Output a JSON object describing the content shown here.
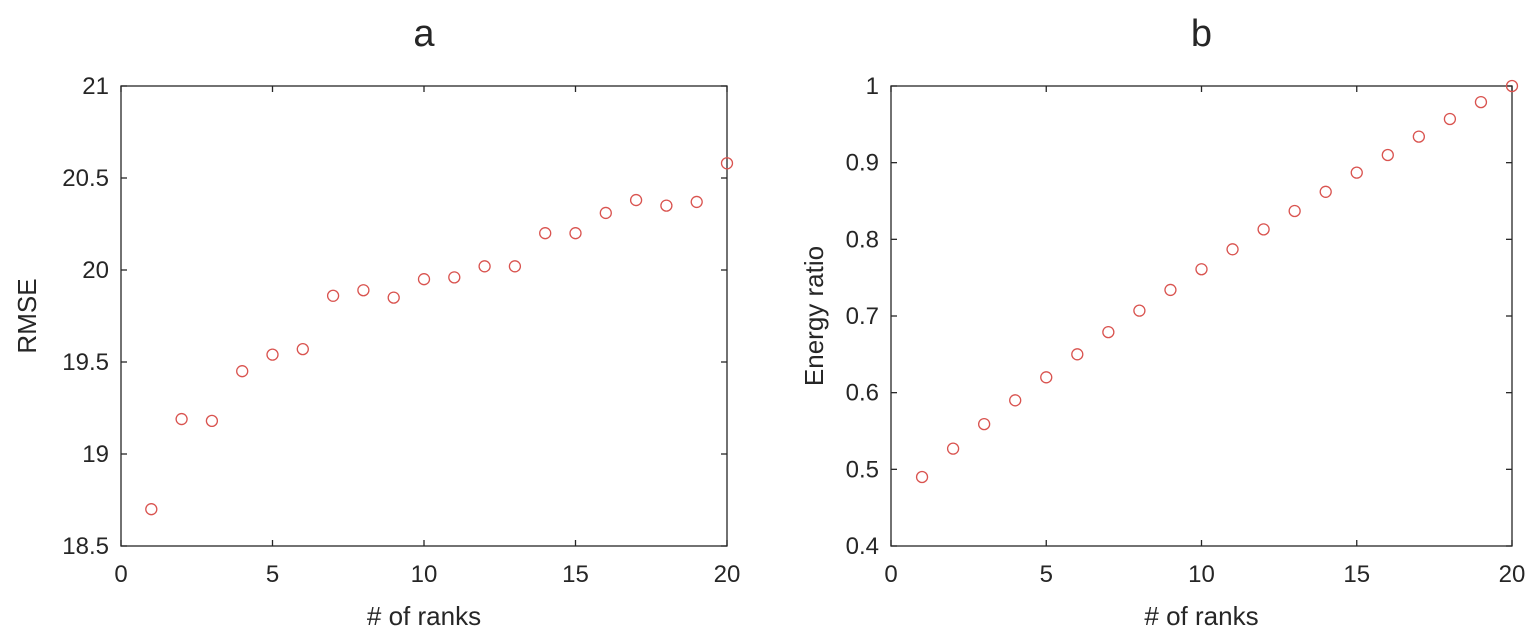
{
  "chart_data": [
    {
      "type": "scatter",
      "title": "a",
      "xlabel": "# of ranks",
      "ylabel": "RMSE",
      "xlim": [
        0,
        20
      ],
      "ylim": [
        18.5,
        21
      ],
      "xticks": [
        0,
        5,
        10,
        15,
        20
      ],
      "yticks": [
        18.5,
        19,
        19.5,
        20,
        20.5,
        21
      ],
      "xtick_labels": [
        "0",
        "5",
        "10",
        "15",
        "20"
      ],
      "ytick_labels": [
        "18.5",
        "19",
        "19.5",
        "20",
        "20.5",
        "21"
      ],
      "grid": false,
      "marker_color": "#d9534f",
      "marker": "circle-open",
      "x": [
        1,
        2,
        3,
        4,
        5,
        6,
        7,
        8,
        9,
        10,
        11,
        12,
        13,
        14,
        15,
        16,
        17,
        18,
        19,
        20
      ],
      "y": [
        18.7,
        19.19,
        19.18,
        19.45,
        19.54,
        19.57,
        19.86,
        19.89,
        19.85,
        19.95,
        19.96,
        20.02,
        20.02,
        20.2,
        20.2,
        20.31,
        20.38,
        20.35,
        20.37,
        20.58
      ]
    },
    {
      "type": "scatter",
      "title": "b",
      "xlabel": "# of ranks",
      "ylabel": "Energy ratio",
      "xlim": [
        0,
        20
      ],
      "ylim": [
        0.4,
        1
      ],
      "xticks": [
        0,
        5,
        10,
        15,
        20
      ],
      "yticks": [
        0.4,
        0.5,
        0.6,
        0.7,
        0.8,
        0.9,
        1
      ],
      "xtick_labels": [
        "0",
        "5",
        "10",
        "15",
        "20"
      ],
      "ytick_labels": [
        "0.4",
        "0.5",
        "0.6",
        "0.7",
        "0.8",
        "0.9",
        "1"
      ],
      "grid": false,
      "marker_color": "#d9534f",
      "marker": "circle-open",
      "x": [
        1,
        2,
        3,
        4,
        5,
        6,
        7,
        8,
        9,
        10,
        11,
        12,
        13,
        14,
        15,
        16,
        17,
        18,
        19,
        20
      ],
      "y": [
        0.49,
        0.527,
        0.559,
        0.59,
        0.62,
        0.65,
        0.679,
        0.707,
        0.734,
        0.761,
        0.787,
        0.813,
        0.837,
        0.862,
        0.887,
        0.91,
        0.934,
        0.957,
        0.979,
        1.0
      ]
    }
  ]
}
